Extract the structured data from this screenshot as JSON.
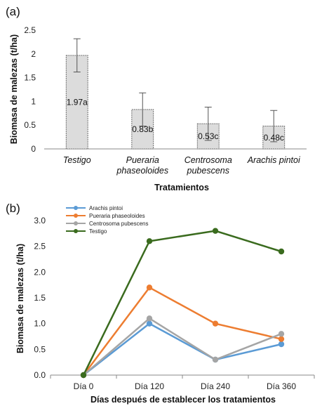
{
  "panels": {
    "a": "(a)",
    "b": "(b)"
  },
  "chart_data": [
    {
      "type": "bar",
      "ylabel": "Biomasa de malezas (t/ha)",
      "xlabel": "Tratamientos",
      "ylim": [
        0,
        2.5
      ],
      "yticks": [
        "0",
        "0.5",
        "1",
        "1.5",
        "2",
        "2.5"
      ],
      "categories": [
        [
          "Testigo"
        ],
        [
          "Pueraria",
          "phaseoloides"
        ],
        [
          "Centrosoma",
          "pubescens"
        ],
        [
          "Arachis pintoi"
        ]
      ],
      "values": [
        1.97,
        0.83,
        0.53,
        0.48
      ],
      "error": [
        0.35,
        0.35,
        0.35,
        0.33
      ],
      "data_labels": [
        "1.97a",
        "0.83b",
        "0.53c",
        "0.48c"
      ],
      "bar_fill": "#dcdcdc",
      "bar_stroke": "#6e6e6e",
      "grid": false
    },
    {
      "type": "line",
      "ylabel": "Biomasa de malezas (t/ha)",
      "xlabel": "Días después de establecer los tratamientos",
      "ylim": [
        0,
        3.0
      ],
      "yticks": [
        "0.0",
        "0.5",
        "1.0",
        "1.5",
        "2.0",
        "2.5",
        "3.0"
      ],
      "categories": [
        "Día 0",
        "Día 120",
        "Día 240",
        "Día 360"
      ],
      "legend_position": "top-left",
      "grid": false,
      "series": [
        {
          "name": "Arachis pintoi",
          "color": "#5b9bd5",
          "values": [
            0,
            1.0,
            0.3,
            0.6
          ]
        },
        {
          "name": "Pueraria phaseoloides",
          "color": "#ed7d31",
          "values": [
            0,
            1.7,
            1.0,
            0.7
          ]
        },
        {
          "name": "Centrosoma pubescens",
          "color": "#a5a5a5",
          "values": [
            0,
            1.1,
            0.3,
            0.8
          ]
        },
        {
          "name": "Testigo",
          "color": "#3a6b1e",
          "values": [
            0,
            2.6,
            2.8,
            2.4
          ]
        }
      ]
    }
  ]
}
